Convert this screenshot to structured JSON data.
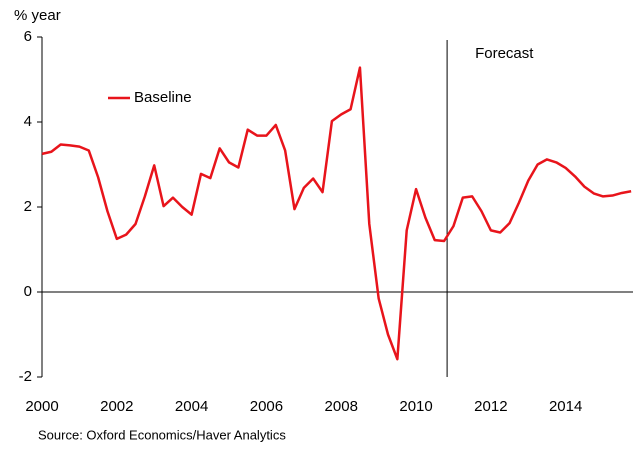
{
  "chart_data": {
    "type": "line",
    "y_axis_label": "% year",
    "source": "Source: Oxford Economics/Haver Analytics",
    "annotation": {
      "text": "Forecast",
      "x": 2010.83
    },
    "legend_position": "upper left",
    "x": [
      2000,
      2000.25,
      2000.5,
      2000.75,
      2001,
      2001.25,
      2001.5,
      2001.75,
      2002,
      2002.25,
      2002.5,
      2002.75,
      2003,
      2003.25,
      2003.5,
      2003.75,
      2004,
      2004.25,
      2004.5,
      2004.75,
      2005,
      2005.25,
      2005.5,
      2005.75,
      2006,
      2006.25,
      2006.5,
      2006.75,
      2007,
      2007.25,
      2007.5,
      2007.75,
      2008,
      2008.25,
      2008.5,
      2008.75,
      2009,
      2009.25,
      2009.5,
      2009.75,
      2010,
      2010.25,
      2010.5,
      2010.75,
      2011,
      2011.25,
      2011.5,
      2011.75,
      2012,
      2012.25,
      2012.5,
      2012.75,
      2013,
      2013.25,
      2013.5,
      2013.75,
      2014,
      2014.25,
      2014.5,
      2014.75,
      2015,
      2015.25,
      2015.5,
      2015.75
    ],
    "series": [
      {
        "name": "Baseline",
        "color": "#e8141b",
        "values": [
          3.25,
          3.3,
          3.47,
          3.45,
          3.42,
          3.33,
          2.7,
          1.9,
          1.25,
          1.35,
          1.6,
          2.25,
          2.98,
          2.02,
          2.22,
          2.0,
          1.82,
          2.78,
          2.68,
          3.38,
          3.05,
          2.93,
          3.82,
          3.68,
          3.68,
          3.93,
          3.33,
          1.95,
          2.45,
          2.67,
          2.35,
          4.02,
          4.18,
          4.3,
          5.28,
          1.6,
          -0.15,
          -1.0,
          -1.58,
          1.45,
          2.42,
          1.75,
          1.22,
          1.2,
          1.55,
          2.22,
          2.25,
          1.9,
          1.45,
          1.4,
          1.62,
          2.1,
          2.62,
          3.0,
          3.12,
          3.05,
          2.92,
          2.72,
          2.48,
          2.32,
          2.25,
          2.27,
          2.33,
          2.37
        ]
      }
    ],
    "xlim": [
      2000,
      2015.8
    ],
    "xticks": [
      2000,
      2002,
      2004,
      2006,
      2008,
      2010,
      2012,
      2014
    ],
    "ylim": [
      -2,
      6
    ],
    "yticks": [
      -2,
      0,
      2,
      4,
      6
    ]
  }
}
